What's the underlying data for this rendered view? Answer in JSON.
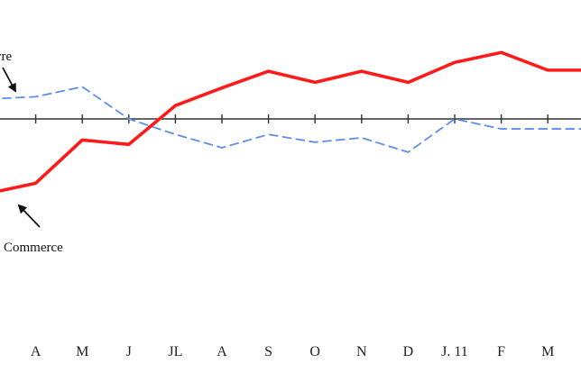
{
  "chart_data": {
    "type": "line",
    "title": "",
    "xlabel": "",
    "ylabel": "",
    "categories": [
      "",
      "A",
      "M",
      "J",
      "JL",
      "A",
      "S",
      "O",
      "N",
      "D",
      "J. 11",
      "F",
      "M",
      ""
    ],
    "ylim": [
      -10,
      10
    ],
    "zero_line": true,
    "grid": false,
    "legend": "none",
    "series": [
      {
        "name": "Commerce",
        "color": "#ff1a1a",
        "style": "solid",
        "values": [
          -6.7,
          -5.8,
          -1.9,
          -2.3,
          1.2,
          2.8,
          4.3,
          3.3,
          4.3,
          3.3,
          5.1,
          6.0,
          4.4,
          4.4
        ]
      },
      {
        "name": "vre",
        "color": "#5b8def",
        "style": "dashed",
        "values": [
          1.8,
          2.0,
          2.9,
          0.0,
          -1.4,
          -2.6,
          -1.4,
          -2.1,
          -1.7,
          -3.0,
          0.0,
          -0.9,
          -0.9,
          -0.9
        ]
      }
    ],
    "annotations": [
      {
        "text": "vre",
        "series": "vre"
      },
      {
        "text": "Commerce",
        "series": "Commerce"
      }
    ]
  }
}
